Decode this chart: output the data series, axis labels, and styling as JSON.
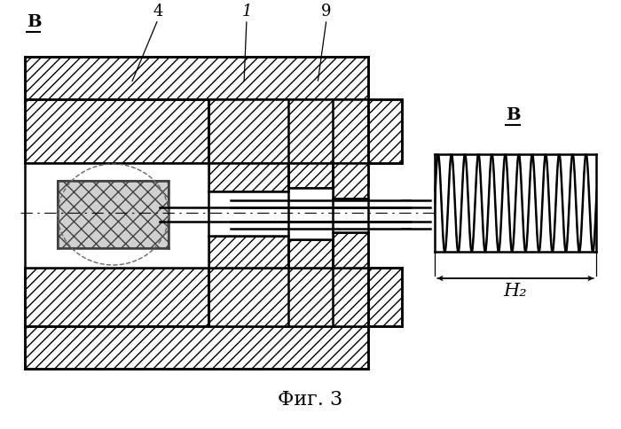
{
  "title": "Фиг. 3",
  "label_B": "В",
  "label_4": "4",
  "label_1": "1",
  "label_9": "9",
  "label_H2": "H₂",
  "bg_color": "#ffffff",
  "lc": "#000000",
  "fig_width": 7.0,
  "fig_height": 4.84,
  "dpi": 100
}
